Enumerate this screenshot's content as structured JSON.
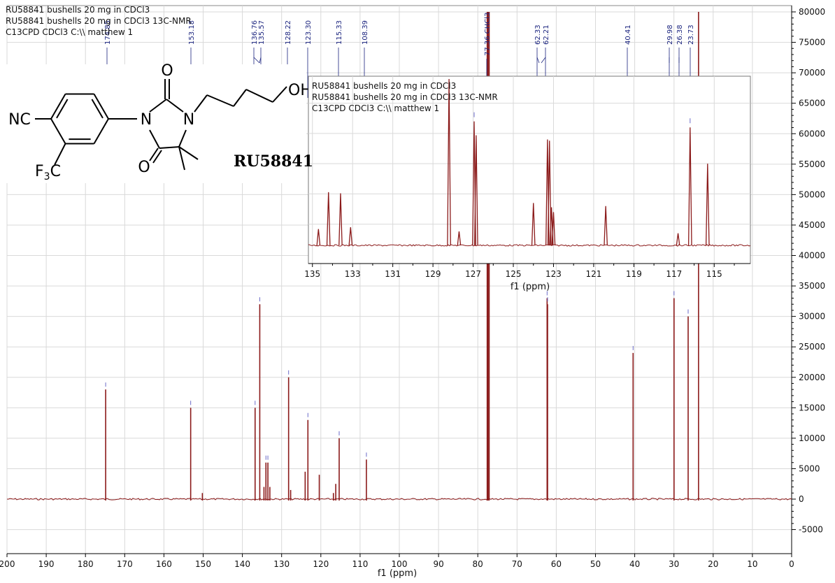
{
  "header": {
    "lines": [
      "RU58841 bushells 20 mg in CDCl3",
      "RU58841 bushells 20 mg in CDCl3 13C-NMR",
      "C13CPD CDCl3 C:\\\\ matthew 1"
    ]
  },
  "inset_header": {
    "lines": [
      "RU58841 bushells 20 mg in CDCl3",
      "RU58841 bushells 20 mg in CDCl3 13C-NMR",
      "C13CPD CDCl3 C:\\\\ matthew 1"
    ]
  },
  "molecule": {
    "name": "RU58841",
    "labels": {
      "nc": "NC",
      "n1": "N",
      "n3": "N",
      "o_top": "O",
      "o_bottom": "O",
      "oh": "OH",
      "cf3_f": "F",
      "cf3_sub": "3",
      "cf3_c": "C"
    }
  },
  "colors": {
    "spectrum": "#8b1a1a",
    "peak_label": "#1a237e",
    "grid": "#d9d9d9",
    "axis": "#000000"
  },
  "chart_data": [
    {
      "type": "line",
      "name": "main-spectrum",
      "xlabel": "f1 (ppm)",
      "ylabel": "",
      "xlim": [
        200,
        0
      ],
      "ylim": [
        -7000,
        81000
      ],
      "x_ticks": [
        200,
        190,
        180,
        170,
        160,
        150,
        140,
        130,
        120,
        110,
        100,
        90,
        80,
        70,
        60,
        50,
        40,
        30,
        20,
        10,
        0
      ],
      "y_ticks": [
        -5000,
        0,
        5000,
        10000,
        15000,
        20000,
        25000,
        30000,
        35000,
        40000,
        45000,
        50000,
        55000,
        60000,
        65000,
        70000,
        75000,
        80000
      ],
      "grid": true,
      "baseline": 0,
      "peaks": [
        {
          "ppm": 174.85,
          "intensity": 18000
        },
        {
          "ppm": 153.18,
          "intensity": 15000
        },
        {
          "ppm": 150.2,
          "intensity": 1000
        },
        {
          "ppm": 136.76,
          "intensity": 15000
        },
        {
          "ppm": 135.57,
          "intensity": 32000
        },
        {
          "ppm": 134.5,
          "intensity": 2000
        },
        {
          "ppm": 134.0,
          "intensity": 6000
        },
        {
          "ppm": 133.5,
          "intensity": 6000
        },
        {
          "ppm": 133.0,
          "intensity": 2000
        },
        {
          "ppm": 128.22,
          "intensity": 20000
        },
        {
          "ppm": 127.7,
          "intensity": 1500
        },
        {
          "ppm": 124.0,
          "intensity": 4500
        },
        {
          "ppm": 123.3,
          "intensity": 13000
        },
        {
          "ppm": 120.4,
          "intensity": 4000
        },
        {
          "ppm": 116.8,
          "intensity": 1000
        },
        {
          "ppm": 116.2,
          "intensity": 2500
        },
        {
          "ppm": 115.33,
          "intensity": 10000
        },
        {
          "ppm": 108.39,
          "intensity": 6500
        },
        {
          "ppm": 77.6,
          "intensity": 80000
        },
        {
          "ppm": 77.36,
          "intensity": 80000
        },
        {
          "ppm": 77.1,
          "intensity": 80000
        },
        {
          "ppm": 62.33,
          "intensity": 33000
        },
        {
          "ppm": 62.21,
          "intensity": 32000
        },
        {
          "ppm": 40.41,
          "intensity": 24000
        },
        {
          "ppm": 29.98,
          "intensity": 33000
        },
        {
          "ppm": 26.38,
          "intensity": 30000
        },
        {
          "ppm": 23.73,
          "intensity": 80000
        }
      ],
      "peak_labels": [
        "174.85",
        "153.18",
        "136.76",
        "135.57",
        "128.22",
        "123.30",
        "115.33",
        "108.39",
        "77.36 CHCl3",
        "62.33",
        "62.21",
        "40.41",
        "29.98",
        "26.38",
        "23.73"
      ]
    },
    {
      "type": "line",
      "name": "inset-spectrum",
      "xlabel": "f1 (ppm)",
      "ylabel": "",
      "xlim": [
        135.2,
        113.2
      ],
      "ylim": [
        40000,
        69000
      ],
      "x_ticks": [
        135,
        133,
        131,
        129,
        127,
        125,
        123,
        121,
        119,
        117,
        115
      ],
      "grid": true,
      "baseline": 41500,
      "peaks": [
        {
          "ppm": 134.7,
          "intensity": 44200
        },
        {
          "ppm": 134.2,
          "intensity": 50300
        },
        {
          "ppm": 133.6,
          "intensity": 50100
        },
        {
          "ppm": 133.1,
          "intensity": 44500
        },
        {
          "ppm": 128.2,
          "intensity": 69000
        },
        {
          "ppm": 127.7,
          "intensity": 43800
        },
        {
          "ppm": 126.95,
          "intensity": 62000
        },
        {
          "ppm": 126.85,
          "intensity": 59700
        },
        {
          "ppm": 124.0,
          "intensity": 48500
        },
        {
          "ppm": 123.3,
          "intensity": 59000
        },
        {
          "ppm": 123.2,
          "intensity": 58800
        },
        {
          "ppm": 123.1,
          "intensity": 47800
        },
        {
          "ppm": 123.0,
          "intensity": 47000
        },
        {
          "ppm": 120.4,
          "intensity": 48000
        },
        {
          "ppm": 116.8,
          "intensity": 43500
        },
        {
          "ppm": 116.2,
          "intensity": 61000
        },
        {
          "ppm": 115.33,
          "intensity": 55000
        }
      ]
    }
  ]
}
